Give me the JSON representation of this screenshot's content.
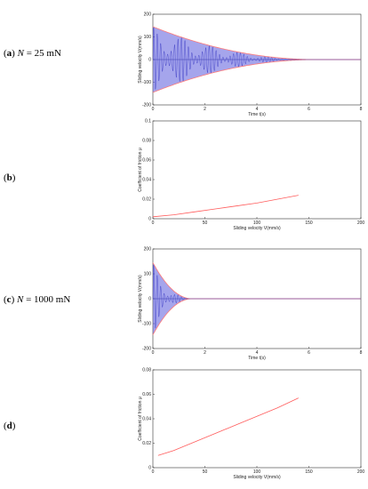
{
  "labels": [
    {
      "id": "a",
      "prefix": "(",
      "bold": "a",
      "suffix": ") ",
      "italic": "N",
      "rest": " = 25 mN"
    },
    {
      "id": "b",
      "prefix": "(",
      "bold": "b",
      "suffix": ")",
      "italic": "",
      "rest": ""
    },
    {
      "id": "c",
      "prefix": "(",
      "bold": "c",
      "suffix": ") ",
      "italic": "N",
      "rest": " = 1000 mN"
    },
    {
      "id": "d",
      "prefix": "(",
      "bold": "d",
      "suffix": ")",
      "italic": "",
      "rest": ""
    }
  ],
  "colors": {
    "velocity_fill": "#5b5bdc",
    "envelope": "#ff7a7a",
    "friction": "#ff5c5c",
    "axis": "#333333"
  },
  "chart_data": [
    {
      "id": "a",
      "type": "line",
      "xlabel": "Time t(s)",
      "ylabel": "Sliding velocity V(mm/s)",
      "xlim": [
        0,
        8
      ],
      "ylim": [
        -200,
        200
      ],
      "xticks": [
        0,
        2,
        4,
        6,
        8
      ],
      "yticks": [
        -200,
        -100,
        0,
        100,
        200
      ],
      "series": [
        {
          "kind": "decaying-oscillation",
          "amplitude": 145,
          "decay_time": 6.3
        }
      ]
    },
    {
      "id": "b",
      "type": "line",
      "xlabel": "Sliding velocity V(mm/s)",
      "ylabel": "Coefficient of friction μ",
      "xlim": [
        0,
        200
      ],
      "ylim": [
        0,
        0.1
      ],
      "xticks": [
        0,
        50,
        100,
        150,
        200
      ],
      "yticks": [
        0,
        0.02,
        0.04,
        0.06,
        0.08,
        0.1
      ],
      "series": [
        {
          "x": [
            0,
            20,
            40,
            60,
            80,
            100,
            120,
            140
          ],
          "y": [
            0.002,
            0.004,
            0.007,
            0.01,
            0.013,
            0.016,
            0.02,
            0.024
          ]
        }
      ]
    },
    {
      "id": "c",
      "type": "line",
      "xlabel": "Time t(s)",
      "ylabel": "Sliding velocity V(mm/s)",
      "xlim": [
        0,
        8
      ],
      "ylim": [
        -200,
        200
      ],
      "xticks": [
        0,
        2,
        4,
        6,
        8
      ],
      "yticks": [
        -200,
        -100,
        0,
        100,
        200
      ],
      "series": [
        {
          "kind": "decaying-oscillation",
          "amplitude": 145,
          "decay_time": 1.5
        }
      ]
    },
    {
      "id": "d",
      "type": "line",
      "xlabel": "Sliding velocity V(mm/s)",
      "ylabel": "Coefficient of friction μ",
      "xlim": [
        0,
        200
      ],
      "ylim": [
        0,
        0.08
      ],
      "xticks": [
        0,
        50,
        100,
        150,
        200
      ],
      "yticks": [
        0,
        0.02,
        0.04,
        0.06,
        0.08
      ],
      "series": [
        {
          "x": [
            5,
            20,
            40,
            60,
            80,
            100,
            120,
            140
          ],
          "y": [
            0.01,
            0.014,
            0.021,
            0.028,
            0.035,
            0.042,
            0.049,
            0.057
          ]
        }
      ]
    }
  ]
}
